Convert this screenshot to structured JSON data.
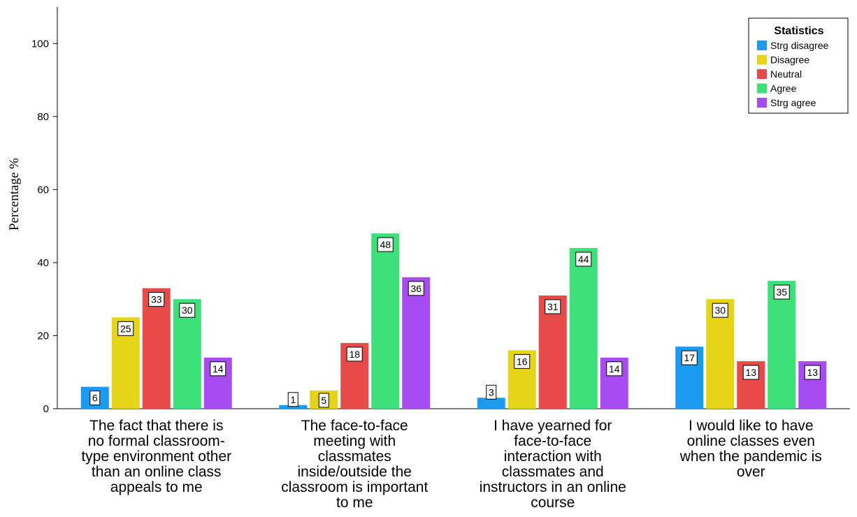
{
  "chart_data": {
    "type": "bar",
    "ylabel": "Percentage %",
    "xlabel": "",
    "ylim": [
      0,
      110
    ],
    "yticks": [
      0,
      20,
      40,
      60,
      80,
      100
    ],
    "grid": false,
    "legend": {
      "title": "Statistics",
      "placement": "top-right"
    },
    "categories": [
      "The fact that there is no formal classroom-type environment other than an online class appeals to me",
      "The face-to-face meeting  with classmates inside/outside the classroom is important to me",
      "I have yearned for face-to-face interaction with classmates and instructors in an online course",
      "I would like to have online classes even when the pandemic is over"
    ],
    "category_lines": [
      [
        "The fact that there is",
        "no formal classroom-",
        "type environment other",
        "than an online class",
        "appeals to me"
      ],
      [
        "The face-to-face",
        "meeting  with",
        "classmates",
        "inside/outside the",
        "classroom is important",
        "to me"
      ],
      [
        "I have yearned for",
        "face-to-face",
        "interaction with",
        "classmates and",
        "instructors in an online",
        "course"
      ],
      [
        "I would like to have",
        "online classes even",
        "when the pandemic is",
        "over"
      ]
    ],
    "series": [
      {
        "name": "Strg disagree",
        "color": "#1a9bf0",
        "values": [
          6,
          1,
          3,
          17
        ]
      },
      {
        "name": "Disagree",
        "color": "#e6d418",
        "values": [
          25,
          5,
          16,
          30
        ]
      },
      {
        "name": "Neutral",
        "color": "#e84a4a",
        "values": [
          33,
          18,
          31,
          13
        ]
      },
      {
        "name": "Agree",
        "color": "#3ee07a",
        "values": [
          30,
          48,
          44,
          35
        ]
      },
      {
        "name": "Strg agree",
        "color": "#a64cf0",
        "values": [
          14,
          36,
          14,
          13
        ]
      }
    ]
  }
}
